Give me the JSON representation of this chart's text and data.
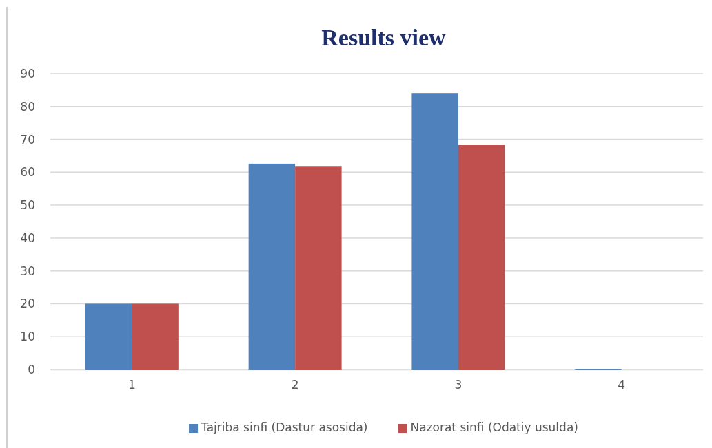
{
  "chart_data": {
    "type": "bar",
    "title": "Results view",
    "categories": [
      "1",
      "2",
      "3",
      "4"
    ],
    "series": [
      {
        "name": "Tajriba sinfi (Dastur asosida)",
        "color": "#4f81bd",
        "values": [
          20,
          62.6,
          84.1,
          0.2
        ]
      },
      {
        "name": "Nazorat sinfi (Odatiy usulda)",
        "color": "#c0504d",
        "values": [
          20,
          61.9,
          68.4,
          0
        ]
      }
    ],
    "ylim": [
      0,
      90
    ],
    "yticks": [
      0,
      10,
      20,
      30,
      40,
      50,
      60,
      70,
      80,
      90
    ],
    "grid": "y",
    "legend": "bottom"
  }
}
